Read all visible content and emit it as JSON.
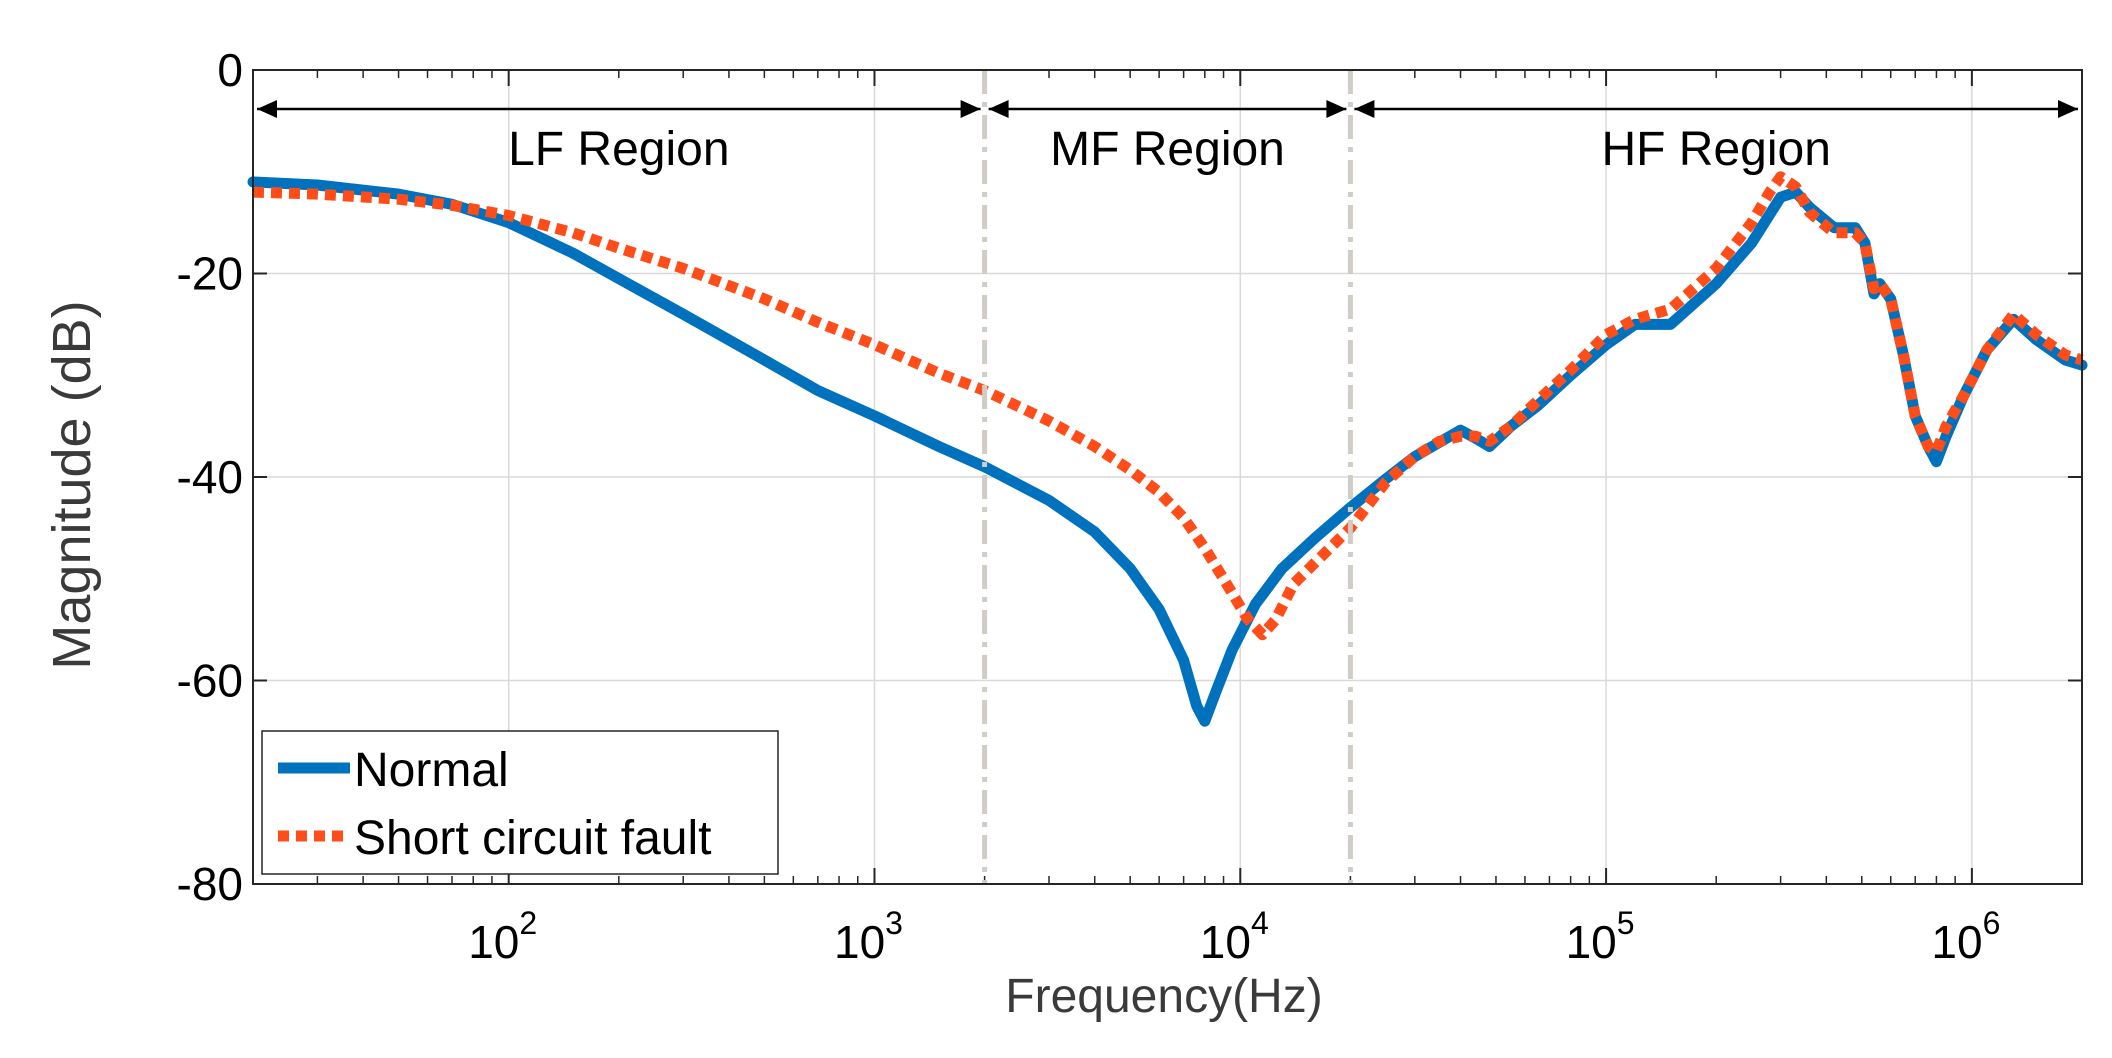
{
  "chart_data": {
    "type": "line",
    "title": "",
    "xlabel": "Frequency(Hz)",
    "ylabel": "Magnitude (dB)",
    "xscale": "log",
    "xlim": [
      20,
      2000000
    ],
    "ylim": [
      -80,
      0
    ],
    "yticks": [
      0,
      -20,
      -40,
      -60,
      -80
    ],
    "ytick_labels": [
      "0",
      "-20",
      "-40",
      "-60",
      "-80"
    ],
    "xticks": [
      {
        "value": 100,
        "base": "10",
        "exp": "2"
      },
      {
        "value": 1000,
        "base": "10",
        "exp": "3"
      },
      {
        "value": 10000,
        "base": "10",
        "exp": "4"
      },
      {
        "value": 100000,
        "base": "10",
        "exp": "5"
      },
      {
        "value": 1000000,
        "base": "10",
        "exp": "6"
      }
    ],
    "grid": true,
    "legend_position": "bottom-left",
    "colors": {
      "normal": "#0072BD",
      "fault": "#FF4D1A",
      "divider": "#D0CCC6"
    },
    "dividers": [
      2000,
      20000
    ],
    "regions": [
      {
        "label": "LF Region",
        "from": 20,
        "to": 2000
      },
      {
        "label": "MF Region",
        "from": 2000,
        "to": 20000
      },
      {
        "label": "HF Region",
        "from": 20000,
        "to": 2000000
      }
    ],
    "series": [
      {
        "name": "Normal",
        "style": "solid",
        "x": [
          20,
          30,
          50,
          70,
          100,
          150,
          200,
          300,
          500,
          700,
          1000,
          1500,
          2000,
          3000,
          4000,
          5000,
          6000,
          7000,
          7600,
          8000,
          8600,
          9500,
          11000,
          13000,
          16000,
          20000,
          25000,
          30000,
          35000,
          40000,
          44000,
          48000,
          55000,
          65000,
          80000,
          100000,
          120000,
          150000,
          200000,
          250000,
          300000,
          330000,
          360000,
          420000,
          480000,
          510000,
          540000,
          560000,
          600000,
          650000,
          700000,
          760000,
          800000,
          850000,
          950000,
          1100000,
          1300000,
          1500000,
          1800000,
          2000000
        ],
        "values": [
          -11,
          -11.3,
          -12.2,
          -13.2,
          -15,
          -18,
          -20.5,
          -24,
          -28.5,
          -31.5,
          -34,
          -37,
          -39,
          -42.3,
          -45.4,
          -49,
          -53,
          -58,
          -62.5,
          -64,
          -61,
          -57,
          -52.5,
          -49,
          -46,
          -43,
          -40.2,
          -38,
          -36.6,
          -35.4,
          -36.2,
          -37,
          -35,
          -33,
          -30,
          -27,
          -25,
          -25,
          -21,
          -17,
          -12.5,
          -12,
          -13.5,
          -15.5,
          -15.5,
          -17,
          -22,
          -21,
          -22.5,
          -28,
          -34,
          -37,
          -38.5,
          -36,
          -32,
          -27.5,
          -24.5,
          -26.5,
          -28.5,
          -29
        ]
      },
      {
        "name": "Short circuit fault",
        "style": "dotted",
        "x": [
          20,
          30,
          50,
          70,
          100,
          150,
          200,
          300,
          500,
          700,
          1000,
          1500,
          2000,
          3000,
          4000,
          5000,
          6000,
          7000,
          8000,
          9000,
          10500,
          11500,
          12500,
          14000,
          17000,
          20000,
          25000,
          30000,
          35000,
          40000,
          44000,
          48000,
          55000,
          65000,
          80000,
          100000,
          120000,
          150000,
          200000,
          250000,
          280000,
          300000,
          330000,
          360000,
          420000,
          480000,
          510000,
          540000,
          560000,
          600000,
          650000,
          700000,
          760000,
          800000,
          850000,
          950000,
          1100000,
          1300000,
          1500000,
          1800000,
          2000000
        ],
        "values": [
          -12,
          -12.2,
          -12.7,
          -13.3,
          -14.3,
          -16,
          -17.5,
          -19.5,
          -22.5,
          -24.8,
          -27,
          -29.8,
          -31.5,
          -34.5,
          -37,
          -39.3,
          -41.5,
          -44,
          -47,
          -50,
          -54,
          -55.5,
          -54,
          -50.5,
          -47.5,
          -45,
          -40.5,
          -38,
          -36.5,
          -36,
          -36,
          -36.5,
          -35,
          -32.5,
          -29.5,
          -26,
          -24.5,
          -23.5,
          -19.5,
          -15,
          -12,
          -10.5,
          -11.5,
          -14,
          -16,
          -16,
          -17,
          -21.5,
          -21,
          -22.5,
          -28,
          -34,
          -37,
          -37.5,
          -35,
          -32,
          -27.5,
          -24,
          -26,
          -28,
          -28.5
        ]
      }
    ]
  }
}
